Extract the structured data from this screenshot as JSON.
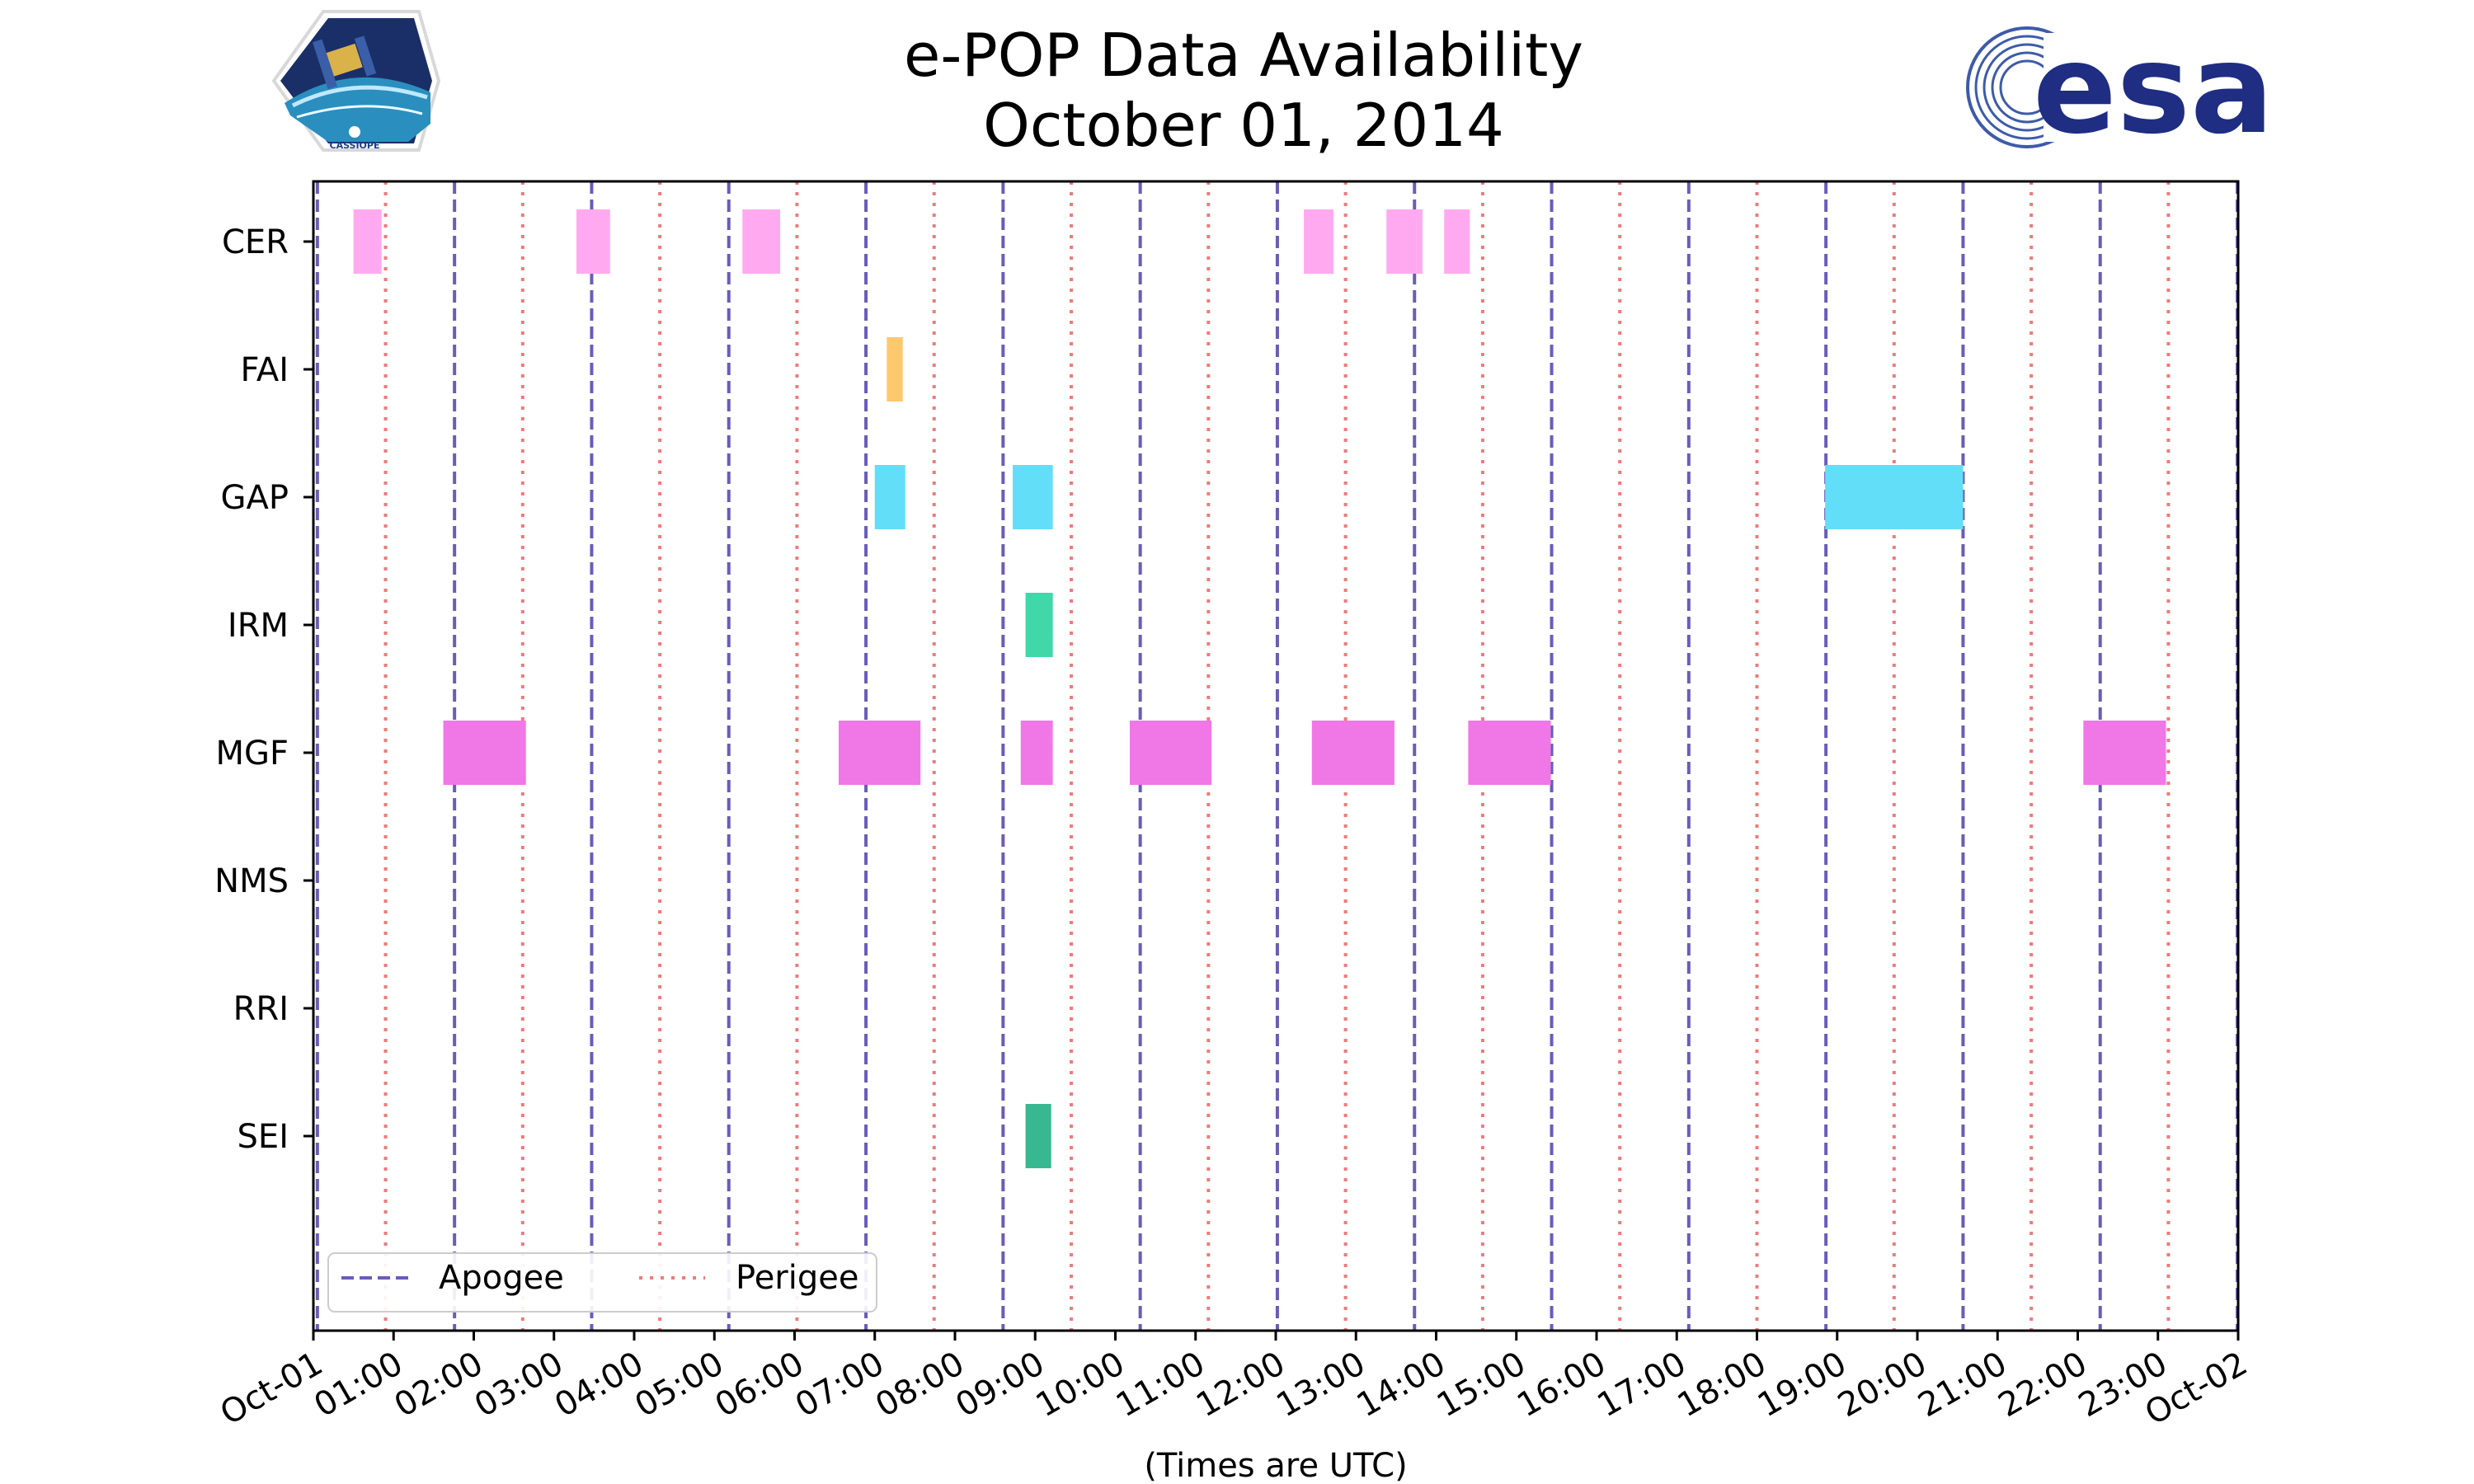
{
  "chart_data": {
    "type": "timeline",
    "title": "e-POP Data Availability",
    "subtitle": "October 01, 2014",
    "xlabel": "(Times are UTC)",
    "ylabel": "",
    "xlim": [
      0,
      24
    ],
    "x_tick_labels": [
      "Oct-01",
      "01:00",
      "02:00",
      "03:00",
      "04:00",
      "05:00",
      "06:00",
      "07:00",
      "08:00",
      "09:00",
      "10:00",
      "11:00",
      "12:00",
      "13:00",
      "14:00",
      "15:00",
      "16:00",
      "17:00",
      "18:00",
      "19:00",
      "20:00",
      "21:00",
      "22:00",
      "23:00",
      "Oct-02"
    ],
    "categories": [
      "CER",
      "FAI",
      "GAP",
      "IRM",
      "MGF",
      "NMS",
      "RRI",
      "SEI"
    ],
    "colors": {
      "CER": "#ffaaf0",
      "FAI": "#fdc86e",
      "GAP": "#62def8",
      "IRM": "#40d8a8",
      "MGF": "#f077e6",
      "NMS": "#888888",
      "RRI": "#888888",
      "SEI": "#38b890",
      "apogee": "#6a5cb8",
      "perigee": "#f07a7a"
    },
    "series": [
      {
        "name": "CER",
        "intervals": [
          [
            0.5,
            0.85
          ],
          [
            3.28,
            3.7
          ],
          [
            5.35,
            5.82
          ],
          [
            12.35,
            12.72
          ],
          [
            13.38,
            13.83
          ],
          [
            14.1,
            14.42
          ]
        ]
      },
      {
        "name": "FAI",
        "intervals": [
          [
            7.15,
            7.35
          ]
        ]
      },
      {
        "name": "GAP",
        "intervals": [
          [
            7.0,
            7.38
          ],
          [
            8.72,
            9.22
          ],
          [
            18.85,
            20.57
          ]
        ]
      },
      {
        "name": "IRM",
        "intervals": [
          [
            8.88,
            9.22
          ]
        ]
      },
      {
        "name": "MGF",
        "intervals": [
          [
            1.62,
            2.65
          ],
          [
            6.55,
            7.57
          ],
          [
            8.82,
            9.22
          ],
          [
            10.18,
            11.2
          ],
          [
            12.45,
            13.48
          ],
          [
            14.4,
            15.43
          ],
          [
            22.07,
            23.1
          ]
        ]
      },
      {
        "name": "NMS",
        "intervals": []
      },
      {
        "name": "RRI",
        "intervals": []
      },
      {
        "name": "SEI",
        "intervals": [
          [
            8.88,
            9.2
          ]
        ]
      }
    ],
    "apogee_times": [
      0.05,
      1.76,
      3.47,
      5.18,
      6.89,
      8.6,
      10.31,
      12.02,
      13.73,
      15.44,
      17.15,
      18.86,
      20.57,
      22.28,
      23.99
    ],
    "perigee_times": [
      0.9,
      2.61,
      4.32,
      6.03,
      7.74,
      9.45,
      11.16,
      12.87,
      14.58,
      16.29,
      18.0,
      19.71,
      21.42,
      23.13
    ],
    "legend": [
      {
        "label": "Apogee",
        "style": "dashed"
      },
      {
        "label": "Perigee",
        "style": "dotted"
      }
    ],
    "legend_position": "lower-left",
    "grid": false
  },
  "logos": {
    "left_badge_text": "CASSIOPE",
    "right_logo_text": "esa"
  }
}
